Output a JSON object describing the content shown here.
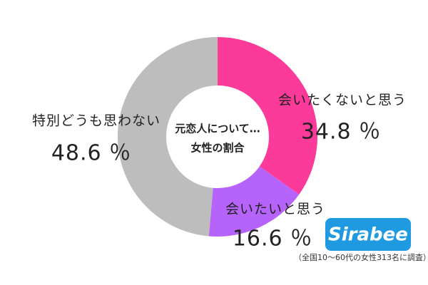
{
  "chart_data": {
    "type": "donut",
    "title": "元恋人について…",
    "subtitle": "女性の割合",
    "categories": [
      "会いたくないと思う",
      "会いたいと思う",
      "特別どうも思わない"
    ],
    "values": [
      34.8,
      16.6,
      48.6
    ],
    "value_labels": [
      "34.8 ％",
      "16.6 ％",
      "48.6 ％"
    ],
    "colors": [
      "#fb3a99",
      "#b663fb",
      "#bdbdbd"
    ],
    "logo": "Sirabee",
    "source": "（全国10〜60代の女性313名に調査）"
  }
}
